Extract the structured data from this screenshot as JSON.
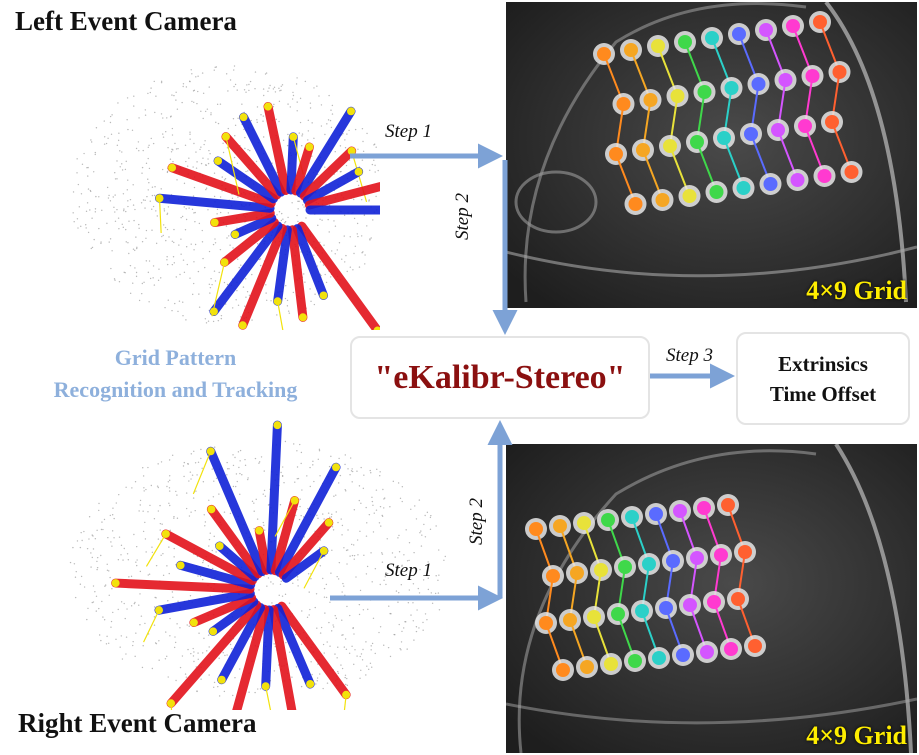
{
  "labels": {
    "left_camera": "Left Event Camera",
    "right_camera": "Right Event Camera",
    "grid_top": "4×9 Grid",
    "grid_bottom": "4×9 Grid",
    "recognition_line1": "Grid Pattern",
    "recognition_line2": "Recognition and Tracking",
    "center_box": "\"eKalibr-Stereo\"",
    "output_line1": "Extrinsics",
    "output_line2": "Time Offset"
  },
  "steps": {
    "top_step1": "Step 1",
    "top_step2": "Step 2",
    "bottom_step1": "Step 1",
    "bottom_step2": "Step 2",
    "step3": "Step 3"
  },
  "colors": {
    "arrow": "#7da2d6",
    "center_text": "#8b1010",
    "grid_label": "#ffee00",
    "recognition": "#8eb0dc",
    "event_red": "#e3121b",
    "event_blue": "#1022d8",
    "event_yellow": "#f2e20c",
    "grid_row_colors": [
      "#ff8a1e",
      "#f5a623",
      "#e8e23a",
      "#3fd84a",
      "#2bd0c8",
      "#5a6bff",
      "#d455ff",
      "#ff3ad0",
      "#ff6030"
    ]
  }
}
